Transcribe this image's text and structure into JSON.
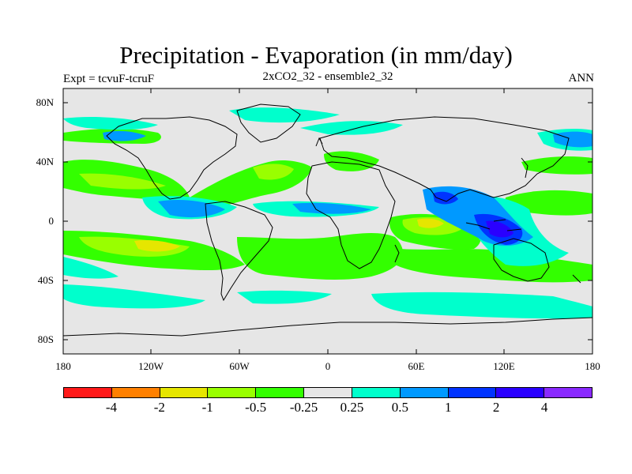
{
  "title": "Precipitation - Evaporation (in mm/day)",
  "subtitle_left": "Expt = tcvuF-tcruF",
  "subtitle_center": "2xCO2_32 - ensemble2_32",
  "subtitle_right": "ANN",
  "y_ticks": [
    "80N",
    "40N",
    "0",
    "40S",
    "80S"
  ],
  "x_ticks": [
    "180",
    "120W",
    "60W",
    "0",
    "60E",
    "120E",
    "180"
  ],
  "legend": {
    "colors": [
      "#ff1a1a",
      "#ff8000",
      "#e6e600",
      "#99ff00",
      "#33ff00",
      "#e6e6e6",
      "#00ffcc",
      "#0099ff",
      "#0033ff",
      "#2a00ff",
      "#8a2aff"
    ],
    "labels": [
      "-4",
      "-2",
      "-1",
      "-0.5",
      "-0.25",
      "0.25",
      "0.5",
      "1",
      "2",
      "4"
    ]
  },
  "colors": {
    "land_background": "#e6e6e6",
    "coast": "#000000"
  }
}
